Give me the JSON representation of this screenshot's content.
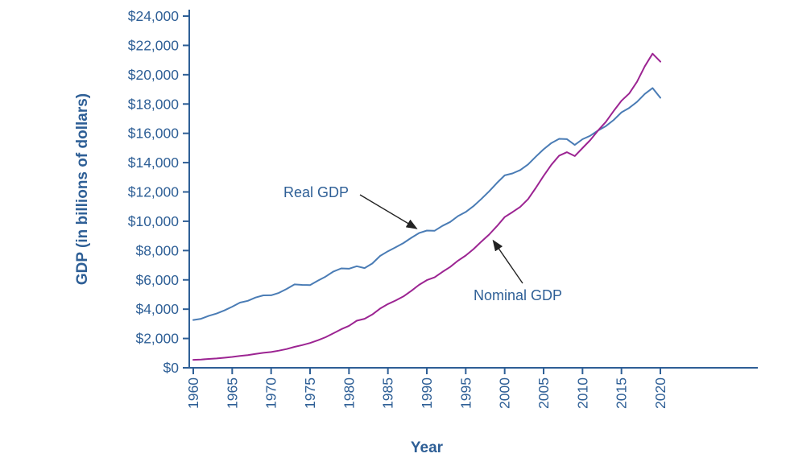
{
  "colors": {
    "axis": "#2e5f96",
    "label_text": "#2e5f96",
    "real_line": "#4a7cb5",
    "nominal_line": "#9c2492",
    "arrow": "#222222"
  },
  "chart_data": {
    "type": "line",
    "title": "",
    "xlabel": "Year",
    "ylabel": "GDP (in billions of dollars)",
    "grid": false,
    "legend": "none",
    "xlim": [
      1960,
      2032
    ],
    "ylim": [
      0,
      24000
    ],
    "x_ticks": [
      1960,
      1965,
      1970,
      1975,
      1980,
      1985,
      1990,
      1995,
      2000,
      2005,
      2010,
      2015,
      2020
    ],
    "x_tick_labels": [
      "1960",
      "1965",
      "1970",
      "1975",
      "1980",
      "1985",
      "1990",
      "1995",
      "2000",
      "2005",
      "2010",
      "2015",
      "2020"
    ],
    "y_ticks": [
      0,
      2000,
      4000,
      6000,
      8000,
      10000,
      12000,
      14000,
      16000,
      18000,
      20000,
      22000,
      24000
    ],
    "y_tick_labels": [
      "$0",
      "$2,000",
      "$4,000",
      "$6,000",
      "$8,000",
      "$10,000",
      "$12,000",
      "$14,000",
      "$16,000",
      "$18,000",
      "$20,000",
      "$22,000",
      "$24,000"
    ],
    "years": [
      1960,
      1961,
      1962,
      1963,
      1964,
      1965,
      1966,
      1967,
      1968,
      1969,
      1970,
      1971,
      1972,
      1973,
      1974,
      1975,
      1976,
      1977,
      1978,
      1979,
      1980,
      1981,
      1982,
      1983,
      1984,
      1985,
      1986,
      1987,
      1988,
      1989,
      1990,
      1991,
      1992,
      1993,
      1994,
      1995,
      1996,
      1997,
      1998,
      1999,
      2000,
      2001,
      2002,
      2003,
      2004,
      2005,
      2006,
      2007,
      2008,
      2009,
      2010,
      2011,
      2012,
      2013,
      2014,
      2015,
      2016,
      2017,
      2018,
      2019,
      2020
    ],
    "series": [
      {
        "name": "Real GDP",
        "color": "#4a7cb5",
        "values": [
          3260,
          3344,
          3548,
          3703,
          3916,
          4171,
          4446,
          4568,
          4792,
          4942,
          4951,
          5114,
          5383,
          5687,
          5656,
          5645,
          5949,
          6224,
          6569,
          6781,
          6759,
          6931,
          6805,
          7118,
          7633,
          7951,
          8226,
          8511,
          8867,
          9192,
          9366,
          9355,
          9685,
          9952,
          10352,
          10630,
          11031,
          11522,
          12038,
          12610,
          13131,
          13262,
          13493,
          13879,
          14406,
          14913,
          15338,
          15626,
          15605,
          15209,
          15599,
          15841,
          16197,
          16495,
          16912,
          17432,
          17731,
          18144,
          18688,
          19092,
          18426
        ]
      },
      {
        "name": "Nominal GDP",
        "color": "#9c2492",
        "values": [
          543,
          563,
          605,
          639,
          686,
          744,
          815,
          862,
          943,
          1020,
          1076,
          1168,
          1282,
          1429,
          1549,
          1689,
          1878,
          2086,
          2357,
          2632,
          2863,
          3211,
          3345,
          3638,
          4041,
          4347,
          4590,
          4870,
          5253,
          5658,
          5980,
          6174,
          6539,
          6879,
          7309,
          7664,
          8100,
          8609,
          9089,
          9661,
          10285,
          10622,
          10978,
          11511,
          12275,
          13094,
          13856,
          14478,
          14713,
          14449,
          14992,
          15543,
          16197,
          16785,
          17527,
          18225,
          18715,
          19519,
          20580,
          21433,
          20894
        ]
      }
    ],
    "annotations": [
      {
        "label": "Real GDP",
        "target_year": 1989.5,
        "target_value": 9250
      },
      {
        "label": "Nominal GDP",
        "target_year": 1998,
        "target_value": 9089
      }
    ]
  }
}
